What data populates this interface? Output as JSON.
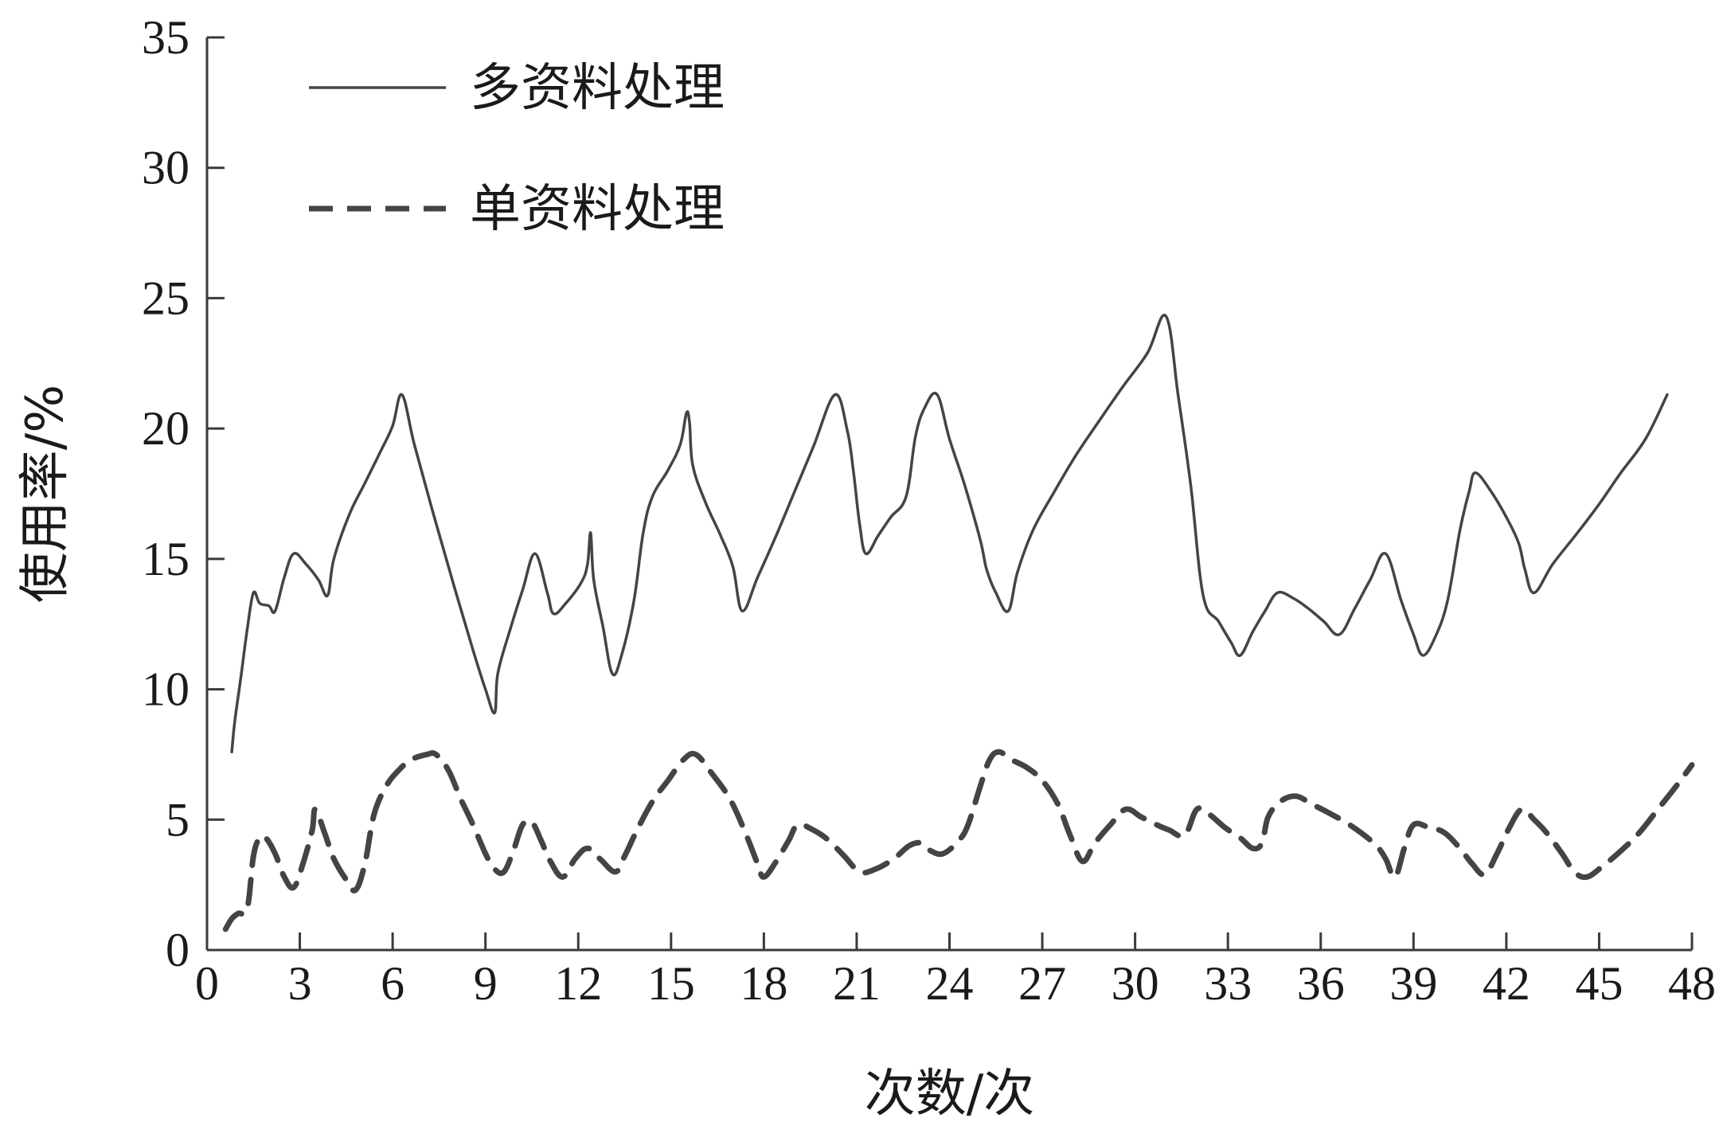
{
  "chart_data": {
    "type": "line",
    "xlabel": "次数/次",
    "ylabel": "使用率/%",
    "xlim": [
      0,
      48
    ],
    "ylim": [
      0,
      35
    ],
    "xticks": [
      0,
      3,
      6,
      9,
      12,
      15,
      18,
      21,
      24,
      27,
      30,
      33,
      36,
      39,
      42,
      45,
      48
    ],
    "yticks": [
      0,
      5,
      10,
      15,
      20,
      25,
      30,
      35
    ],
    "grid": false,
    "legend": "top-left",
    "series": [
      {
        "name": "多资料处理",
        "style": "solid",
        "color": "#444444",
        "points": [
          [
            0.8,
            7.6
          ],
          [
            0.9,
            8.8
          ],
          [
            1.1,
            10.5
          ],
          [
            1.3,
            12.3
          ],
          [
            1.5,
            13.7
          ],
          [
            1.7,
            13.3
          ],
          [
            2.0,
            13.2
          ],
          [
            2.2,
            13.0
          ],
          [
            2.5,
            14.3
          ],
          [
            2.8,
            15.2
          ],
          [
            3.2,
            14.8
          ],
          [
            3.6,
            14.2
          ],
          [
            3.9,
            13.6
          ],
          [
            4.1,
            15.0
          ],
          [
            4.6,
            16.7
          ],
          [
            5.1,
            17.9
          ],
          [
            5.6,
            19.1
          ],
          [
            6.0,
            20.1
          ],
          [
            6.3,
            21.3
          ],
          [
            6.7,
            19.4
          ],
          [
            7.3,
            16.8
          ],
          [
            8.0,
            13.9
          ],
          [
            8.6,
            11.5
          ],
          [
            9.0,
            10.0
          ],
          [
            9.3,
            9.1
          ],
          [
            9.4,
            10.6
          ],
          [
            9.8,
            12.3
          ],
          [
            10.2,
            13.8
          ],
          [
            10.6,
            15.2
          ],
          [
            11.0,
            13.7
          ],
          [
            11.2,
            12.9
          ],
          [
            11.6,
            13.3
          ],
          [
            12.1,
            14.1
          ],
          [
            12.3,
            14.8
          ],
          [
            12.4,
            16.0
          ],
          [
            12.5,
            14.2
          ],
          [
            12.8,
            12.4
          ],
          [
            13.1,
            10.6
          ],
          [
            13.4,
            11.3
          ],
          [
            13.8,
            13.4
          ],
          [
            14.1,
            16.0
          ],
          [
            14.4,
            17.4
          ],
          [
            14.9,
            18.4
          ],
          [
            15.3,
            19.4
          ],
          [
            15.5,
            20.6
          ],
          [
            15.6,
            20.2
          ],
          [
            15.7,
            18.6
          ],
          [
            16.1,
            17.2
          ],
          [
            16.6,
            15.9
          ],
          [
            17.0,
            14.7
          ],
          [
            17.3,
            13.0
          ],
          [
            17.8,
            14.3
          ],
          [
            18.4,
            15.9
          ],
          [
            19.0,
            17.6
          ],
          [
            19.6,
            19.3
          ],
          [
            20.3,
            21.3
          ],
          [
            20.7,
            19.9
          ],
          [
            20.9,
            18.3
          ],
          [
            21.1,
            16.3
          ],
          [
            21.3,
            15.2
          ],
          [
            21.7,
            15.9
          ],
          [
            22.1,
            16.6
          ],
          [
            22.6,
            17.4
          ],
          [
            22.9,
            19.7
          ],
          [
            23.2,
            20.8
          ],
          [
            23.6,
            21.3
          ],
          [
            24.0,
            19.6
          ],
          [
            24.5,
            17.8
          ],
          [
            25.0,
            15.7
          ],
          [
            25.2,
            14.6
          ],
          [
            25.5,
            13.7
          ],
          [
            25.9,
            13.0
          ],
          [
            26.2,
            14.5
          ],
          [
            26.7,
            16.1
          ],
          [
            27.4,
            17.6
          ],
          [
            28.1,
            19.0
          ],
          [
            28.9,
            20.4
          ],
          [
            29.6,
            21.6
          ],
          [
            30.4,
            22.9
          ],
          [
            31.0,
            24.3
          ],
          [
            31.4,
            21.2
          ],
          [
            31.8,
            17.8
          ],
          [
            32.2,
            13.6
          ],
          [
            32.7,
            12.6
          ],
          [
            33.1,
            11.8
          ],
          [
            33.4,
            11.3
          ],
          [
            33.8,
            12.2
          ],
          [
            34.2,
            13.0
          ],
          [
            34.6,
            13.7
          ],
          [
            35.1,
            13.5
          ],
          [
            35.6,
            13.1
          ],
          [
            36.1,
            12.6
          ],
          [
            36.6,
            12.1
          ],
          [
            37.1,
            13.1
          ],
          [
            37.6,
            14.2
          ],
          [
            38.1,
            15.2
          ],
          [
            38.6,
            13.4
          ],
          [
            39.0,
            12.1
          ],
          [
            39.3,
            11.3
          ],
          [
            39.7,
            12.0
          ],
          [
            40.1,
            13.4
          ],
          [
            40.5,
            16.1
          ],
          [
            40.8,
            17.6
          ],
          [
            41.0,
            18.3
          ],
          [
            41.5,
            17.6
          ],
          [
            42.0,
            16.6
          ],
          [
            42.4,
            15.6
          ],
          [
            42.6,
            14.6
          ],
          [
            42.9,
            13.7
          ],
          [
            43.5,
            14.8
          ],
          [
            44.3,
            16.0
          ],
          [
            45.0,
            17.1
          ],
          [
            45.7,
            18.3
          ],
          [
            46.5,
            19.6
          ],
          [
            47.2,
            21.3
          ]
        ]
      },
      {
        "name": "单资料处理",
        "style": "dashed",
        "color": "#444444",
        "points": [
          [
            0.6,
            0.8
          ],
          [
            0.8,
            1.2
          ],
          [
            1.0,
            1.4
          ],
          [
            1.3,
            1.6
          ],
          [
            1.5,
            3.6
          ],
          [
            1.7,
            4.3
          ],
          [
            1.9,
            4.3
          ],
          [
            2.2,
            3.7
          ],
          [
            2.5,
            2.8
          ],
          [
            2.8,
            2.4
          ],
          [
            3.1,
            3.3
          ],
          [
            3.4,
            4.6
          ],
          [
            3.5,
            5.4
          ],
          [
            3.8,
            4.5
          ],
          [
            4.1,
            3.5
          ],
          [
            4.5,
            2.7
          ],
          [
            4.8,
            2.3
          ],
          [
            5.1,
            3.3
          ],
          [
            5.4,
            5.2
          ],
          [
            5.8,
            6.3
          ],
          [
            6.2,
            6.9
          ],
          [
            6.6,
            7.3
          ],
          [
            7.1,
            7.5
          ],
          [
            7.4,
            7.5
          ],
          [
            7.8,
            6.9
          ],
          [
            8.2,
            5.8
          ],
          [
            8.6,
            4.8
          ],
          [
            9.0,
            3.7
          ],
          [
            9.3,
            3.1
          ],
          [
            9.6,
            3.0
          ],
          [
            9.9,
            3.8
          ],
          [
            10.2,
            4.8
          ],
          [
            10.5,
            4.9
          ],
          [
            10.8,
            4.2
          ],
          [
            11.1,
            3.4
          ],
          [
            11.5,
            2.8
          ],
          [
            11.9,
            3.5
          ],
          [
            12.3,
            3.9
          ],
          [
            12.7,
            3.5
          ],
          [
            13.2,
            3.0
          ],
          [
            13.5,
            3.6
          ],
          [
            13.9,
            4.6
          ],
          [
            14.4,
            5.7
          ],
          [
            14.9,
            6.5
          ],
          [
            15.4,
            7.3
          ],
          [
            15.8,
            7.5
          ],
          [
            16.3,
            6.8
          ],
          [
            16.9,
            5.8
          ],
          [
            17.4,
            4.5
          ],
          [
            17.8,
            3.3
          ],
          [
            18.0,
            2.8
          ],
          [
            18.4,
            3.4
          ],
          [
            18.8,
            4.2
          ],
          [
            19.1,
            4.8
          ],
          [
            19.6,
            4.6
          ],
          [
            20.1,
            4.2
          ],
          [
            20.6,
            3.6
          ],
          [
            21.1,
            3.0
          ],
          [
            21.6,
            3.1
          ],
          [
            22.2,
            3.5
          ],
          [
            22.7,
            4.0
          ],
          [
            23.1,
            4.1
          ],
          [
            23.4,
            3.8
          ],
          [
            23.8,
            3.7
          ],
          [
            24.3,
            4.2
          ],
          [
            24.6,
            4.8
          ],
          [
            25.0,
            6.3
          ],
          [
            25.3,
            7.3
          ],
          [
            25.6,
            7.6
          ],
          [
            26.0,
            7.3
          ],
          [
            26.5,
            7.0
          ],
          [
            27.0,
            6.5
          ],
          [
            27.5,
            5.6
          ],
          [
            27.9,
            4.4
          ],
          [
            28.3,
            3.4
          ],
          [
            28.7,
            4.1
          ],
          [
            29.2,
            4.8
          ],
          [
            29.7,
            5.4
          ],
          [
            30.2,
            5.1
          ],
          [
            30.7,
            4.8
          ],
          [
            31.1,
            4.6
          ],
          [
            31.6,
            4.4
          ],
          [
            32.0,
            5.4
          ],
          [
            32.4,
            5.2
          ],
          [
            32.9,
            4.7
          ],
          [
            33.4,
            4.3
          ],
          [
            33.8,
            3.9
          ],
          [
            34.1,
            4.1
          ],
          [
            34.3,
            5.1
          ],
          [
            34.7,
            5.7
          ],
          [
            35.2,
            5.9
          ],
          [
            35.7,
            5.6
          ],
          [
            36.2,
            5.3
          ],
          [
            36.8,
            4.9
          ],
          [
            37.3,
            4.5
          ],
          [
            37.8,
            4.0
          ],
          [
            38.1,
            3.5
          ],
          [
            38.4,
            2.8
          ],
          [
            38.7,
            3.9
          ],
          [
            39.0,
            4.8
          ],
          [
            39.5,
            4.7
          ],
          [
            40.0,
            4.5
          ],
          [
            40.5,
            3.9
          ],
          [
            40.9,
            3.3
          ],
          [
            41.3,
            2.9
          ],
          [
            41.7,
            3.7
          ],
          [
            42.1,
            4.7
          ],
          [
            42.5,
            5.4
          ],
          [
            42.9,
            5.0
          ],
          [
            43.3,
            4.5
          ],
          [
            43.8,
            3.7
          ],
          [
            44.2,
            3.0
          ],
          [
            44.6,
            2.8
          ],
          [
            45.1,
            3.2
          ],
          [
            45.7,
            3.8
          ],
          [
            46.3,
            4.5
          ],
          [
            46.9,
            5.4
          ],
          [
            47.5,
            6.3
          ],
          [
            48.0,
            7.1
          ]
        ]
      }
    ]
  }
}
